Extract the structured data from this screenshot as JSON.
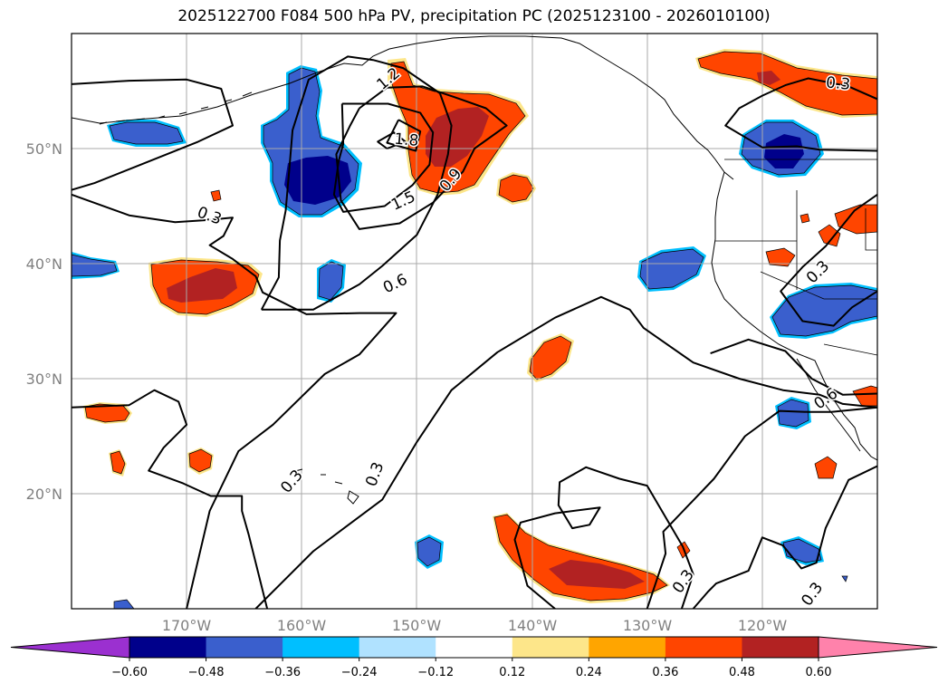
{
  "chart_data": {
    "type": "map",
    "title": "2025122700 F084 500 hPa PV, precipitation PC (2025123100 - 2026010100)",
    "projection": "equirectangular",
    "lon_range": [
      -180,
      -110
    ],
    "lat_range": [
      10,
      60
    ],
    "lat_ticks": [
      {
        "value": 50,
        "label": "50°N"
      },
      {
        "value": 40,
        "label": "40°N"
      },
      {
        "value": 30,
        "label": "30°N"
      },
      {
        "value": 20,
        "label": "20°N"
      }
    ],
    "lon_ticks": [
      {
        "value": -170,
        "label": "170°W"
      },
      {
        "value": -160,
        "label": "160°W"
      },
      {
        "value": -150,
        "label": "150°W"
      },
      {
        "value": -140,
        "label": "140°W"
      },
      {
        "value": -130,
        "label": "130°W"
      },
      {
        "value": -120,
        "label": "120°W"
      }
    ],
    "grid": true,
    "colorbar": {
      "levels": [
        -0.6,
        -0.48,
        -0.36,
        -0.24,
        -0.12,
        0.12,
        0.24,
        0.36,
        0.48,
        0.6
      ],
      "tick_labels": [
        "−0.60",
        "−0.48",
        "−0.36",
        "−0.24",
        "−0.12",
        "0.12",
        "0.24",
        "0.36",
        "0.48",
        "0.60"
      ],
      "colors": [
        "#9b30d0",
        "#00008b",
        "#3a5fcd",
        "#00bfff",
        "#b0e2ff",
        "#ffffff",
        "#fde68a",
        "#ffa500",
        "#ff4500",
        "#b22222",
        "#ff82ab"
      ],
      "extend": "both"
    },
    "contour_labels": [
      {
        "text": "0.3",
        "lon": -168,
        "lat": 44.2,
        "rot": 20
      },
      {
        "text": "1.8",
        "lon": -150.9,
        "lat": 50.8,
        "rot": 5
      },
      {
        "text": "1.5",
        "lon": -151.2,
        "lat": 45.5,
        "rot": -25
      },
      {
        "text": "0.9",
        "lon": -147.1,
        "lat": 47.3,
        "rot": -50
      },
      {
        "text": "0.6",
        "lon": -151.9,
        "lat": 38.3,
        "rot": -25
      },
      {
        "text": "1.2",
        "lon": -152.5,
        "lat": 56.1,
        "rot": -40
      },
      {
        "text": "0.3",
        "lon": -113.4,
        "lat": 55.7,
        "rot": 5
      },
      {
        "text": "0.3",
        "lon": -115.2,
        "lat": 39.3,
        "rot": -45
      },
      {
        "text": "0.6",
        "lon": -114.5,
        "lat": 28.3,
        "rot": -35
      },
      {
        "text": "0.3",
        "lon": -160.9,
        "lat": 21.1,
        "rot": -50
      },
      {
        "text": "0.3",
        "lon": -153.7,
        "lat": 21.7,
        "rot": -70
      },
      {
        "text": "0.3",
        "lon": -126.9,
        "lat": 12.4,
        "rot": -55
      },
      {
        "text": "0.3",
        "lon": -115.7,
        "lat": 11.3,
        "rot": -55
      }
    ],
    "contours": [
      {
        "level": 0.3,
        "points": [
          [
            -180,
            55.6
          ],
          [
            -175,
            55.9
          ],
          [
            -170,
            56
          ],
          [
            -167,
            55.2
          ],
          [
            -166,
            52
          ],
          [
            -169,
            50.6
          ],
          [
            -174,
            48.6
          ],
          [
            -178,
            47
          ],
          [
            -180,
            46.4
          ]
        ]
      },
      {
        "level": 0.3,
        "points": [
          [
            -180,
            46
          ],
          [
            -175,
            44.2
          ],
          [
            -171,
            43.6
          ],
          [
            -168,
            43.8
          ],
          [
            -166,
            44
          ],
          [
            -166.8,
            42.4
          ],
          [
            -168,
            41.6
          ],
          [
            -166,
            40.4
          ],
          [
            -164,
            38.9
          ],
          [
            -163.4,
            37.5
          ],
          [
            -159.6,
            35.6
          ],
          [
            -155,
            35.7
          ],
          [
            -151.8,
            35.7
          ],
          [
            -155,
            32.1
          ],
          [
            -158,
            30.4
          ],
          [
            -162.5,
            26
          ],
          [
            -165.5,
            23.7
          ],
          [
            -168,
            18.5
          ],
          [
            -170,
            10
          ]
        ]
      },
      {
        "level": 0.3,
        "points": [
          [
            -164,
            10
          ],
          [
            -159,
            15
          ],
          [
            -153,
            19.5
          ],
          [
            -150,
            24.5
          ],
          [
            -147,
            29
          ],
          [
            -143,
            32.3
          ],
          [
            -138,
            35.3
          ],
          [
            -134,
            37.1
          ],
          [
            -131.5,
            36
          ],
          [
            -130.3,
            34.4
          ],
          [
            -126,
            31.4
          ],
          [
            -122,
            30
          ],
          [
            -118.2,
            29
          ],
          [
            -115,
            28.6
          ],
          [
            -113,
            27.8
          ],
          [
            -110,
            27.5
          ]
        ]
      },
      {
        "level": 0.3,
        "points": [
          [
            -180,
            27.5
          ],
          [
            -175,
            27.7
          ],
          [
            -172.8,
            29
          ],
          [
            -170.7,
            28
          ],
          [
            -170,
            26
          ],
          [
            -172,
            24
          ],
          [
            -173.3,
            22
          ],
          [
            -170.3,
            20.9
          ],
          [
            -167.9,
            19.8
          ],
          [
            -165.2,
            19.8
          ],
          [
            -165.2,
            18.5
          ],
          [
            -164.6,
            16.4
          ],
          [
            -163,
            10
          ]
        ]
      },
      {
        "level": 0.6,
        "points": [
          [
            -163.5,
            36
          ],
          [
            -162,
            38.8
          ],
          [
            -161.9,
            42
          ],
          [
            -161.4,
            44.6
          ],
          [
            -161.1,
            48
          ],
          [
            -160.8,
            51.6
          ],
          [
            -159.4,
            56
          ],
          [
            -156,
            58
          ],
          [
            -153.8,
            57.7
          ],
          [
            -151.2,
            57
          ],
          [
            -148,
            54.8
          ],
          [
            -147,
            52
          ],
          [
            -147.3,
            49.5
          ],
          [
            -148.2,
            46
          ],
          [
            -150,
            42.5
          ],
          [
            -153,
            39.8
          ],
          [
            -155,
            38.2
          ],
          [
            -159,
            36
          ],
          [
            -163.5,
            36
          ]
        ]
      },
      {
        "level": 0.9,
        "points": [
          [
            -155,
            53.5
          ],
          [
            -152.6,
            55.3
          ],
          [
            -149.5,
            55.4
          ],
          [
            -146.8,
            54.5
          ],
          [
            -144,
            53.5
          ],
          [
            -142.2,
            52
          ],
          [
            -145,
            50
          ],
          [
            -146,
            48
          ],
          [
            -148.6,
            45.3
          ],
          [
            -151.5,
            43.5
          ],
          [
            -155,
            43
          ],
          [
            -156.6,
            45.5
          ],
          [
            -157,
            49.5
          ],
          [
            -155.8,
            52
          ],
          [
            -155,
            53.5
          ]
        ]
      },
      {
        "level": 1.2,
        "points": [
          [
            -156.5,
            53.9
          ],
          [
            -152.5,
            53.9
          ],
          [
            -149.7,
            53.1
          ],
          [
            -148.6,
            51.4
          ],
          [
            -148.9,
            48.6
          ],
          [
            -150.4,
            46.8
          ],
          [
            -152.8,
            45
          ],
          [
            -156.4,
            44.5
          ],
          [
            -157.2,
            46
          ],
          [
            -156.8,
            48.9
          ],
          [
            -156.4,
            50.4
          ],
          [
            -156.5,
            53.9
          ]
        ]
      },
      {
        "level": 1.5,
        "points": [
          [
            -151.6,
            52.5
          ],
          [
            -152.6,
            50.5
          ],
          [
            -150.1,
            49.8
          ],
          [
            -149.7,
            51.5
          ],
          [
            -151.6,
            52.5
          ]
        ]
      },
      {
        "level": 1.8,
        "points": [
          [
            -152.6,
            50
          ],
          [
            -153.4,
            50.6
          ],
          [
            -152,
            51.4
          ],
          [
            -151,
            50.6
          ],
          [
            -152.6,
            50
          ]
        ]
      },
      {
        "level": 0.3,
        "points": [
          [
            -110,
            54.3
          ],
          [
            -112.5,
            55.4
          ],
          [
            -116,
            56.1
          ],
          [
            -118,
            55.5
          ],
          [
            -120,
            54.6
          ],
          [
            -122,
            53.5
          ],
          [
            -123.2,
            52
          ],
          [
            -120,
            50.1
          ],
          [
            -117,
            50.2
          ],
          [
            -115,
            49.9
          ],
          [
            -110,
            49.8
          ]
        ]
      },
      {
        "level": 0.3,
        "points": [
          [
            -110,
            46
          ],
          [
            -112,
            44.6
          ],
          [
            -114.5,
            41.5
          ],
          [
            -116.5,
            39.7
          ],
          [
            -118.4,
            37.6
          ],
          [
            -116.5,
            35
          ],
          [
            -113.8,
            34.6
          ],
          [
            -112.2,
            36.2
          ],
          [
            -110,
            37.6
          ]
        ]
      },
      {
        "level": 0.6,
        "points": [
          [
            -124.5,
            32.2
          ],
          [
            -121.2,
            33.4
          ],
          [
            -118,
            32.4
          ],
          [
            -115.7,
            30
          ],
          [
            -113,
            28.6
          ],
          [
            -110,
            28.7
          ]
        ]
      },
      {
        "level": 0.3,
        "points": [
          [
            -138,
            10
          ],
          [
            -140.4,
            12
          ],
          [
            -141.5,
            16
          ],
          [
            -141,
            17.5
          ],
          [
            -138,
            18.3
          ],
          [
            -134.1,
            18.8
          ],
          [
            -135,
            17.3
          ],
          [
            -136.5,
            17
          ],
          [
            -137.7,
            19
          ],
          [
            -137.6,
            21
          ],
          [
            -135.3,
            22.3
          ],
          [
            -132.4,
            21.3
          ],
          [
            -130,
            20.7
          ],
          [
            -126.9,
            15.4
          ],
          [
            -126,
            13
          ],
          [
            -127,
            10
          ]
        ]
      },
      {
        "level": 0.3,
        "points": [
          [
            -130,
            10
          ],
          [
            -128.4,
            14.8
          ],
          [
            -128.6,
            16.7
          ],
          [
            -126.4,
            19
          ],
          [
            -124.2,
            21.3
          ],
          [
            -121.5,
            25
          ],
          [
            -118.5,
            27.2
          ],
          [
            -116,
            27.1
          ],
          [
            -114,
            27.1
          ],
          [
            -110,
            27.5
          ]
        ]
      },
      {
        "level": 0.3,
        "points": [
          [
            -110,
            22.4
          ],
          [
            -112.5,
            21.2
          ],
          [
            -114.5,
            17
          ],
          [
            -115.3,
            14
          ],
          [
            -116.6,
            13.5
          ],
          [
            -118.2,
            15.5
          ],
          [
            -120,
            16.2
          ],
          [
            -121.2,
            13.3
          ],
          [
            -124,
            12.2
          ],
          [
            -124.7,
            11.5
          ],
          [
            -126,
            10
          ]
        ]
      }
    ]
  }
}
